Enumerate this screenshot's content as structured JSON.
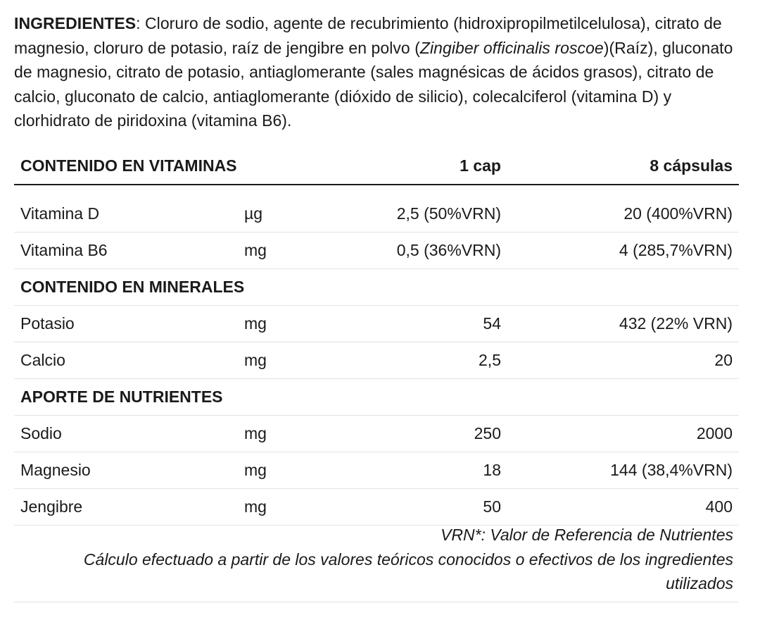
{
  "ingredients": {
    "label": "INGREDIENTES",
    "sep": ": ",
    "text_a": "Cloruro de sodio, agente de recubrimiento (hidroxipropilmetilcelulosa), citrato de magnesio, cloruro de potasio, raíz de jengibre en polvo (",
    "italic": "Zingiber officinalis roscoe",
    "text_b": ")(Raíz), gluconato de magnesio, citrato de potasio, antiaglomerante (sales magnésicas de ácidos grasos), citrato de calcio, gluconato de calcio, antiaglomerante (dióxido de silicio), colecalciferol (vitamina D) y clorhidrato de piridoxina (vitamina B6)."
  },
  "table": {
    "header": {
      "title": "CONTENIDO EN VITAMINAS",
      "col_one": "1 cap",
      "col_eight": "8 cápsulas"
    },
    "vitamins": [
      {
        "name": "Vitamina D",
        "unit": "µg",
        "one": "2,5 (50%VRN)",
        "eight": "20 (400%VRN)"
      },
      {
        "name": "Vitamina B6",
        "unit": "mg",
        "one": "0,5 (36%VRN)",
        "eight": "4 (285,7%VRN)"
      }
    ],
    "minerals_title": "CONTENIDO EN MINERALES",
    "minerals": [
      {
        "name": "Potasio",
        "unit": "mg",
        "one": "54",
        "eight": "432 (22% VRN)"
      },
      {
        "name": "Calcio",
        "unit": "mg",
        "one": "2,5",
        "eight": "20"
      }
    ],
    "nutrients_title": "APORTE DE NUTRIENTES",
    "nutrients": [
      {
        "name": "Sodio",
        "unit": "mg",
        "one": "250",
        "eight": "2000"
      },
      {
        "name": "Magnesio",
        "unit": "mg",
        "one": "18",
        "eight": "144 (38,4%VRN)"
      },
      {
        "name": "Jengibre",
        "unit": "mg",
        "one": "50",
        "eight": "400"
      }
    ]
  },
  "footnote": {
    "line1": "VRN*: Valor de Referencia de Nutrientes",
    "line2": "Cálculo efectuado a partir de los valores teóricos conocidos o efectivos de los ingredientes utilizados"
  }
}
